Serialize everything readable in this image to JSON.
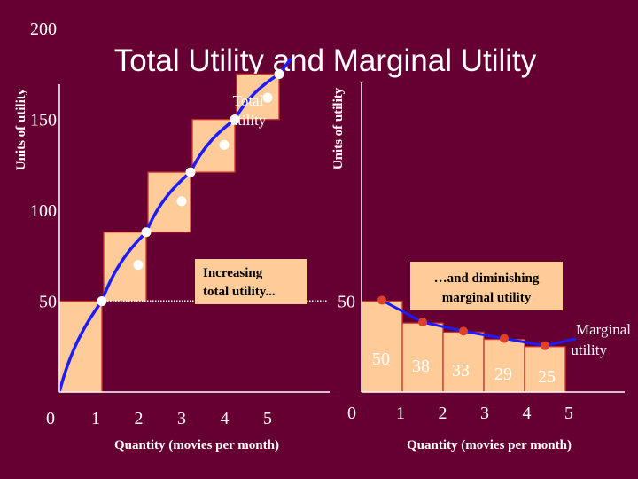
{
  "slide": {
    "title": "Total Utility and Marginal Utility",
    "colors": {
      "background": "#660033",
      "bar_fill": "#FFCC99",
      "bar_stroke": "#CC3333",
      "curve": "#1C1CFF",
      "marker": "#FFFFFF",
      "axis": "#FFFFFF",
      "text": "#FFFFFF",
      "callout_bg": "#FFCC99",
      "callout_text": "#000000",
      "dotted_line": "#FFFFFF",
      "mu_dot": "#E0402A"
    }
  },
  "chart_data": [
    {
      "type": "bar",
      "panel": "left",
      "categories": [
        "1",
        "2",
        "3",
        "4",
        "5"
      ],
      "tick_zero": "0",
      "values": [
        50,
        88,
        121,
        150,
        175
      ],
      "step_increments": [
        50,
        38,
        33,
        29,
        25
      ],
      "y_ticks": [
        "50",
        "100",
        "150",
        "200"
      ],
      "y_tick_values": [
        50,
        100,
        150,
        200
      ],
      "ylim": [
        0,
        205
      ],
      "xlabel": "Quantity (movies per month)",
      "ylabel": "Units of utility",
      "curve_label": "Total utility",
      "callout": "Increasing total utility...",
      "reference_value": 50
    },
    {
      "type": "bar",
      "panel": "right",
      "categories": [
        "1",
        "2",
        "3",
        "4",
        "5"
      ],
      "tick_zero": "0",
      "values": [
        50,
        38,
        33,
        29,
        25
      ],
      "value_labels": [
        "50",
        "38",
        "33",
        "29",
        "25"
      ],
      "y_ticks": [
        "50"
      ],
      "y_tick_values": [
        50
      ],
      "ylim": [
        0,
        205
      ],
      "xlabel": "Quantity (movies per month)",
      "ylabel": "Units of utility",
      "curve_label": "Marginal utility",
      "callout": "…and diminishing marginal utility"
    }
  ]
}
